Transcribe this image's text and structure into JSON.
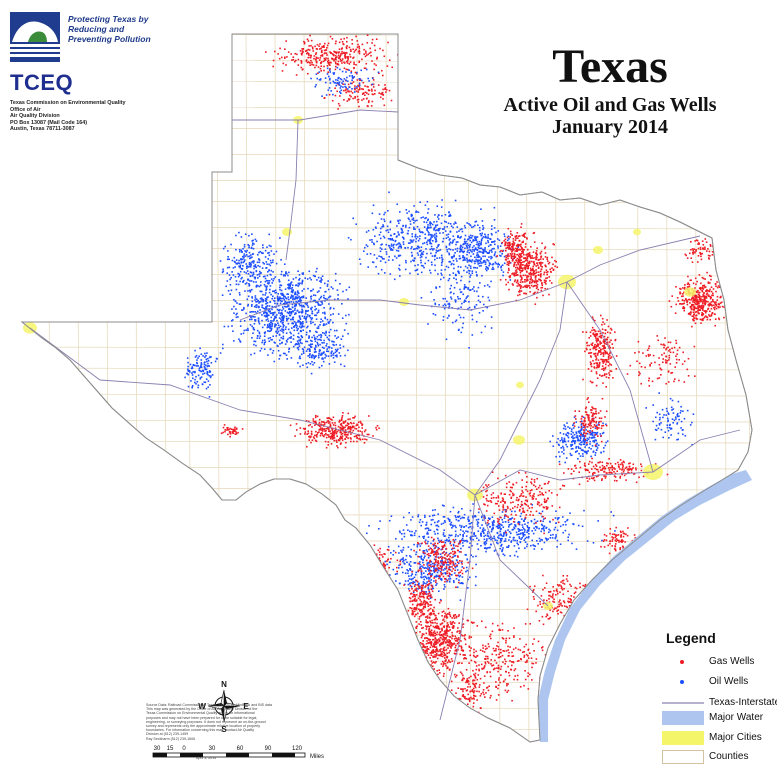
{
  "map": {
    "title": "Texas",
    "subtitle_1": "Active Oil and Gas Wells",
    "subtitle_2": "January 2014",
    "region": "Texas",
    "colors": {
      "gas_wells": "#ee1c25",
      "oil_wells": "#1e4fff",
      "interstates": "#8a7fb0",
      "major_water": "#aec6ef",
      "major_cities": "#f5f56a",
      "counties": "#e5d6b6"
    }
  },
  "logo": {
    "tagline": [
      "Protecting Texas by",
      "Reducing and",
      "Preventing Pollution"
    ],
    "acronym": "TCEQ",
    "agency_lines": [
      "Texas Commission on Environmental Quality",
      "Office of Air",
      "Air Quality Division",
      "PO Box 13087 (Mail Code 164)",
      "Austin, Texas 78711-3087"
    ]
  },
  "legend": {
    "title": "Legend",
    "items": [
      {
        "label": "Gas Wells",
        "symbol": "red-dot",
        "color": "#ee1c25"
      },
      {
        "label": "Oil Wells",
        "symbol": "blue-dot",
        "color": "#1e4fff"
      },
      {
        "label": "Texas-Interstates",
        "symbol": "line",
        "color": "#8a7fb0"
      },
      {
        "label": "Major Water",
        "symbol": "fill",
        "color": "#aec6ef"
      },
      {
        "label": "Major Cities",
        "symbol": "fill",
        "color": "#f5f56a"
      },
      {
        "label": "Counties",
        "symbol": "outline",
        "color": "#e5d6b6"
      }
    ]
  },
  "compass": {
    "n": "N",
    "s": "S",
    "e": "E",
    "w": "W"
  },
  "scale_bar": {
    "ticks": [
      "30",
      "15",
      "0",
      "30",
      "60",
      "90",
      "120"
    ],
    "units": "Miles"
  },
  "credits": {
    "lines": [
      "Source Data: Railroad Commission of Texas, Jan. 2014, MinBank and BIS data",
      "",
      "This map was generated by the Office of Air, Air Quality Division of the",
      "Texas Commission on Environmental Quality and is for informational",
      "purposes and may not have been prepared for or be suitable for legal,",
      "engineering, or surveying purposes. It does not represent an on-the-ground",
      "survey and represents only the approximate relative location of property",
      "boundaries. For information concerning this map, contact Air Quality",
      "Division at (512) 239-1459",
      "Ray Seckharm (512) 239-1606"
    ],
    "date": "April 3, 2014"
  }
}
